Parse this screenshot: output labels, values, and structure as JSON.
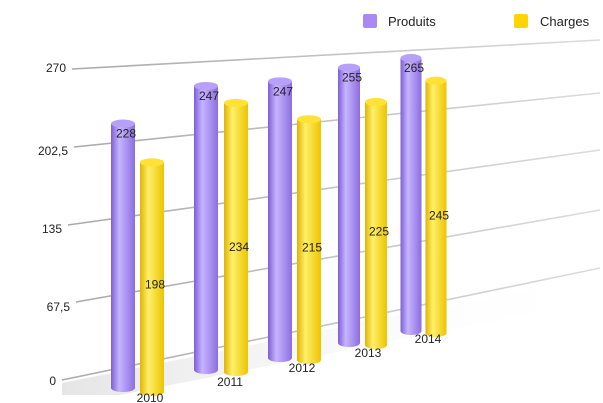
{
  "chart_data": {
    "type": "bar",
    "title": "",
    "xlabel": "",
    "ylabel": "",
    "categories": [
      "2010",
      "2011",
      "2012",
      "2013",
      "2014"
    ],
    "series": [
      {
        "name": "Produits",
        "values": [
          228,
          247,
          247,
          255,
          265
        ],
        "color": "#a98af2"
      },
      {
        "name": "Charges",
        "values": [
          198,
          234,
          215,
          225,
          245
        ],
        "color": "#ffd400"
      }
    ],
    "ylim": [
      0,
      270
    ],
    "yticks": [
      "0",
      "67,5",
      "135",
      "202,5",
      "270"
    ],
    "grid": true,
    "legend": "top-right",
    "style": "3d-perspective-cylinders"
  }
}
